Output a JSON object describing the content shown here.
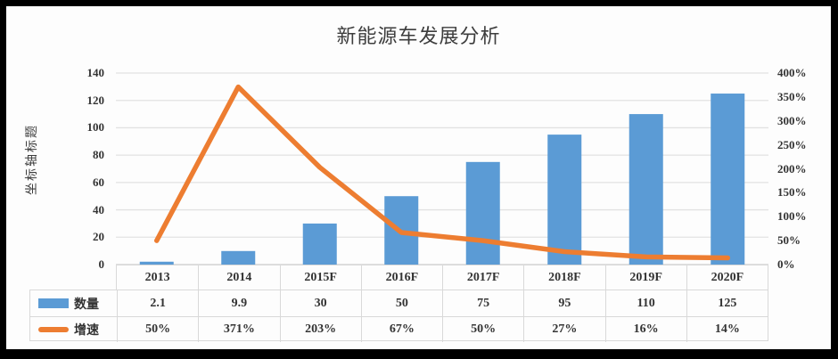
{
  "frame": {
    "border_color": "#000000",
    "canvas_color": "#fdfdfd"
  },
  "chart_data": {
    "type": "bar+line combo",
    "title": "新能源车发展分析",
    "ylabel_left": "坐标轴标题",
    "grid": true,
    "legend_position": "table-left",
    "categories": [
      "2013",
      "2014",
      "2015F",
      "2016F",
      "2017F",
      "2018F",
      "2019F",
      "2020F"
    ],
    "series": [
      {
        "name": "数量",
        "key": "quantity",
        "type": "bar",
        "axis": "left",
        "color": "#5B9BD5",
        "values": [
          2.1,
          9.9,
          30,
          50,
          75,
          95,
          110,
          125
        ],
        "display": [
          "2.1",
          "9.9",
          "30",
          "50",
          "75",
          "95",
          "110",
          "125"
        ]
      },
      {
        "name": "增速",
        "key": "growth",
        "type": "line",
        "axis": "right",
        "color": "#ED7D31",
        "values": [
          0.5,
          3.71,
          2.03,
          0.67,
          0.5,
          0.27,
          0.16,
          0.14
        ],
        "display": [
          "50%",
          "371%",
          "203%",
          "67%",
          "50%",
          "27%",
          "16%",
          "14%"
        ]
      }
    ],
    "left_axis": {
      "min": 0,
      "max": 140,
      "step": 20,
      "tick_labels": [
        "0",
        "20",
        "40",
        "60",
        "80",
        "100",
        "120",
        "140"
      ]
    },
    "right_axis": {
      "min": 0,
      "max": 4.0,
      "step": 0.5,
      "tick_labels": [
        "0%",
        "50%",
        "100%",
        "150%",
        "200%",
        "250%",
        "300%",
        "350%",
        "400%"
      ]
    },
    "colors": {
      "bar": "#5B9BD5",
      "line": "#ED7D31",
      "gridline": "#e2e2e2",
      "axis_line": "#cfcfcf",
      "table_border": "#d9d9d9",
      "text": "#333333",
      "title_text": "#3d3d3d"
    }
  }
}
